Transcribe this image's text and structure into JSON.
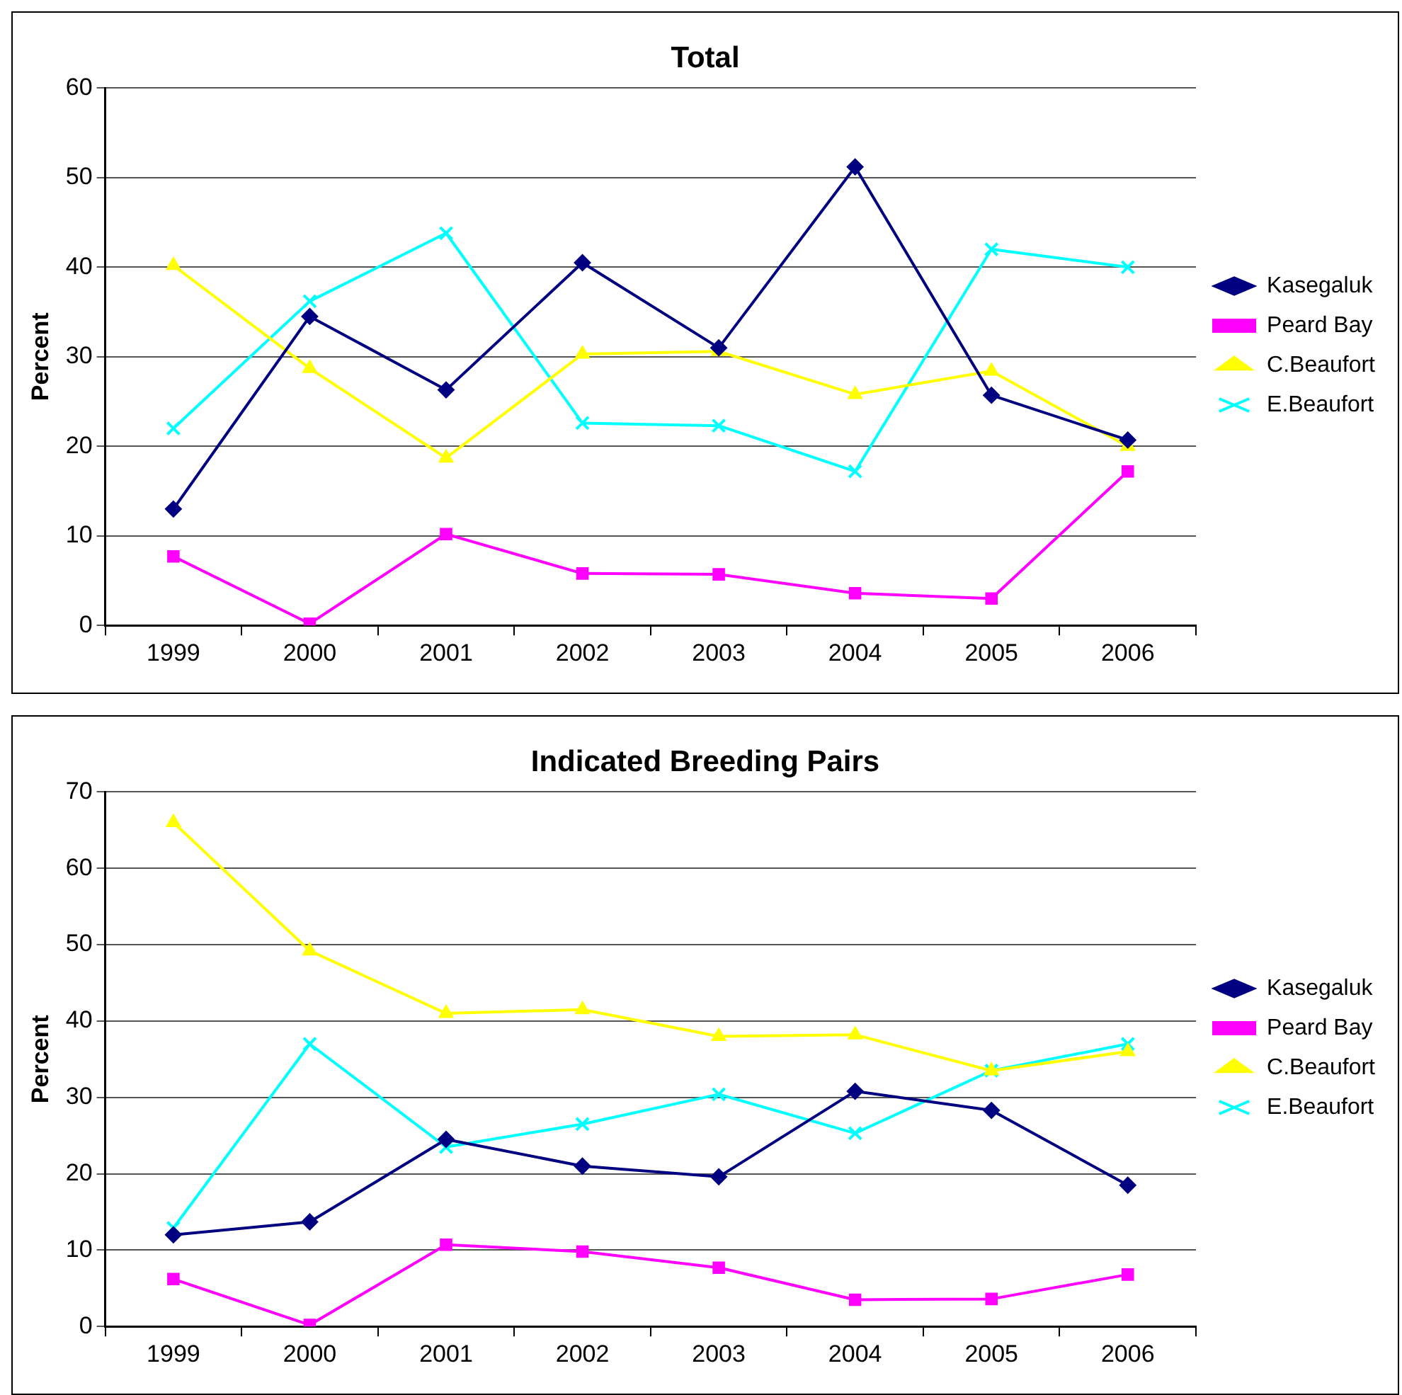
{
  "chart_data": [
    {
      "type": "line",
      "title": "Total",
      "ylabel": "Percent",
      "categories": [
        "1999",
        "2000",
        "2001",
        "2002",
        "2003",
        "2004",
        "2005",
        "2006"
      ],
      "ylim": [
        0,
        60
      ],
      "yticks": [
        0,
        10,
        20,
        30,
        40,
        50,
        60
      ],
      "grid": "y",
      "legend": "right",
      "series": [
        {
          "name": "Kasegaluk",
          "color": "#000080",
          "marker": "diamond",
          "values": [
            13,
            34.5,
            26.3,
            40.5,
            31,
            51.2,
            25.7,
            20.7
          ]
        },
        {
          "name": "Peard Bay",
          "color": "#ff00ff",
          "marker": "square",
          "values": [
            7.7,
            0.2,
            10.2,
            5.8,
            5.7,
            3.6,
            3,
            17.2
          ]
        },
        {
          "name": "C.Beaufort",
          "color": "#ffff00",
          "marker": "triangle",
          "values": [
            40.2,
            28.7,
            18.7,
            30.3,
            30.6,
            25.8,
            28.4,
            20
          ]
        },
        {
          "name": "E.Beaufort",
          "color": "#00ffff",
          "marker": "cross",
          "values": [
            22,
            36.2,
            43.8,
            22.6,
            22.3,
            17.2,
            42,
            40
          ]
        }
      ]
    },
    {
      "type": "line",
      "title": "Indicated Breeding Pairs",
      "ylabel": "Percent",
      "categories": [
        "1999",
        "2000",
        "2001",
        "2002",
        "2003",
        "2004",
        "2005",
        "2006"
      ],
      "ylim": [
        0,
        70
      ],
      "yticks": [
        0,
        10,
        20,
        30,
        40,
        50,
        60,
        70
      ],
      "grid": "y",
      "legend": "right",
      "series": [
        {
          "name": "Kasegaluk",
          "color": "#000080",
          "marker": "diamond",
          "values": [
            12,
            13.7,
            24.5,
            21,
            19.6,
            30.8,
            28.3,
            18.5
          ]
        },
        {
          "name": "Peard Bay",
          "color": "#ff00ff",
          "marker": "square",
          "values": [
            6.2,
            0.2,
            10.7,
            9.8,
            7.7,
            3.5,
            3.6,
            6.8
          ]
        },
        {
          "name": "C.Beaufort",
          "color": "#ffff00",
          "marker": "triangle",
          "values": [
            66,
            49.2,
            41,
            41.5,
            38,
            38.2,
            33.5,
            36
          ]
        },
        {
          "name": "E.Beaufort",
          "color": "#00ffff",
          "marker": "cross",
          "values": [
            12.9,
            37,
            23.5,
            26.5,
            30.4,
            25.3,
            33.5,
            37
          ]
        }
      ]
    }
  ]
}
